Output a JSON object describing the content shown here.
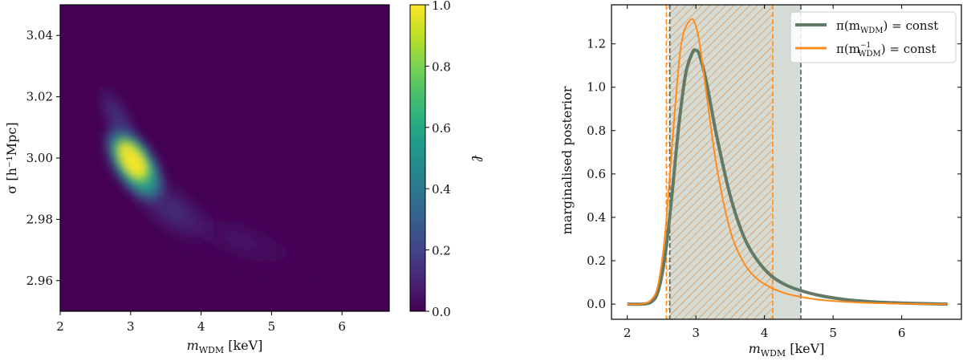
{
  "chart_data": [
    {
      "type": "heatmap",
      "title": "",
      "xlabel": "m_WDM [keV]",
      "xlabel_main": "m",
      "xlabel_sub": "WDM",
      "xlabel_unit": " [keV]",
      "ylabel": "σ [h⁻¹Mpc]",
      "ylabel_display": "σ [h⁻¹Mpc]",
      "xlim": [
        2.0,
        6.67
      ],
      "ylim": [
        2.95,
        3.05
      ],
      "xticks": [
        2,
        3,
        4,
        5,
        6
      ],
      "xtick_labels": [
        "2",
        "3",
        "4",
        "5",
        "6"
      ],
      "yticks": [
        2.96,
        2.98,
        3.0,
        3.02,
        3.04
      ],
      "ytick_labels": [
        "2.96",
        "2.98",
        "3.00",
        "3.02",
        "3.04"
      ],
      "colormap": "viridis",
      "colorbar": {
        "label": "ℓ",
        "range": [
          0.0,
          1.0
        ],
        "ticks": [
          0.0,
          0.2,
          0.4,
          0.6,
          0.8,
          1.0
        ],
        "tick_labels": [
          "0.0",
          "0.2",
          "0.4",
          "0.6",
          "0.8",
          "1.0"
        ]
      },
      "peak": {
        "m_WDM": 3.0,
        "sigma": 3.0,
        "value": 1.0
      },
      "description": "Banana-shaped likelihood ridge running from (~2.5, 3.03) through peak (3.0, 3.00) down to tail near (~5.2, 2.97)"
    },
    {
      "type": "line",
      "title": "",
      "xlabel": "m_WDM [keV]",
      "xlabel_main": "m",
      "xlabel_sub": "WDM",
      "xlabel_unit": " [keV]",
      "ylabel": "marginalised posterior",
      "xlim": [
        1.77,
        6.87
      ],
      "ylim": [
        -0.07,
        1.38
      ],
      "xticks": [
        2,
        3,
        4,
        5,
        6
      ],
      "xtick_labels": [
        "2",
        "3",
        "4",
        "5",
        "6"
      ],
      "yticks": [
        0.0,
        0.2,
        0.4,
        0.6,
        0.8,
        1.0,
        1.2
      ],
      "ytick_labels": [
        "0.0",
        "0.2",
        "0.4",
        "0.6",
        "0.8",
        "1.0",
        "1.2"
      ],
      "grid": false,
      "legend_position": "upper right",
      "series": [
        {
          "name": "π(m_WDM) = const",
          "legend_prefix": "π(m",
          "legend_sub": "WDM",
          "legend_sup": "",
          "legend_suffix": ") = const",
          "color": "#637a67",
          "linewidth": 4,
          "x": [
            2.0,
            2.2,
            2.35,
            2.45,
            2.55,
            2.65,
            2.75,
            2.85,
            2.95,
            3.0,
            3.05,
            3.15,
            3.3,
            3.5,
            3.7,
            3.9,
            4.1,
            4.3,
            4.5,
            4.8,
            5.2,
            5.6,
            6.0,
            6.67
          ],
          "y": [
            0.0,
            0.0,
            0.01,
            0.06,
            0.22,
            0.5,
            0.82,
            1.06,
            1.16,
            1.17,
            1.15,
            1.03,
            0.78,
            0.5,
            0.31,
            0.2,
            0.13,
            0.09,
            0.065,
            0.04,
            0.02,
            0.01,
            0.005,
            0.0
          ],
          "credible_interval": [
            2.62,
            4.53
          ],
          "interval_style": "solid grey fill + dashed bounds"
        },
        {
          "name": "π(m_WDM⁻¹) = const",
          "legend_prefix": "π(m",
          "legend_sub": "WDM",
          "legend_sup": "−1",
          "legend_suffix": ") = const",
          "color": "#ff8c1a",
          "linewidth": 2,
          "x": [
            2.0,
            2.2,
            2.35,
            2.45,
            2.55,
            2.65,
            2.75,
            2.82,
            2.92,
            2.98,
            3.05,
            3.15,
            3.3,
            3.5,
            3.7,
            3.9,
            4.1,
            4.3,
            4.5,
            4.8,
            5.2,
            5.6,
            6.0,
            6.67
          ],
          "y": [
            0.0,
            0.0,
            0.02,
            0.09,
            0.32,
            0.72,
            1.1,
            1.25,
            1.31,
            1.3,
            1.21,
            0.98,
            0.64,
            0.34,
            0.19,
            0.115,
            0.075,
            0.05,
            0.035,
            0.02,
            0.01,
            0.005,
            0.002,
            0.0
          ],
          "credible_interval": [
            2.57,
            4.12
          ],
          "interval_style": "orange diagonal hatch + dashed bounds"
        }
      ]
    }
  ]
}
